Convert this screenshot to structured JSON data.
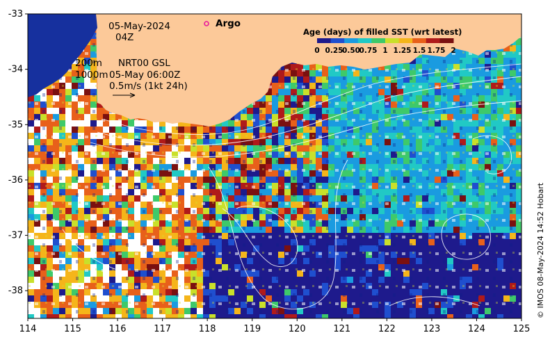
{
  "map": {
    "date": "05-May-2024",
    "hour": "04Z",
    "depth_label": "200m",
    "depth_label2": "1000m",
    "product": "NRT00 GSL",
    "product_time": "05-May 06:00Z",
    "velocity_scale": "0.5m/s (1kt 24h)",
    "argo_label": "Argo",
    "credit": "© IMOS 08-May-2024 14:52 Hobart",
    "lon_ticks": [
      "114",
      "115",
      "116",
      "117",
      "118",
      "119",
      "120",
      "121",
      "122",
      "123",
      "124",
      "125"
    ],
    "lat_ticks": [
      "-33",
      "-34",
      "-35",
      "-36",
      "-37",
      "-38"
    ],
    "lon_range": [
      114,
      125
    ],
    "lat_range": [
      -38.5,
      -33
    ],
    "land_color": "#fcc999",
    "argo_float": {
      "lon": 118.0,
      "lat": -33.2,
      "color": "#e8199c"
    }
  },
  "colorbar": {
    "title": "Age (days) of filled SST (wrt latest)",
    "ticks": [
      "0",
      "0.25",
      "0.50",
      "0.75",
      "1",
      "1.25",
      "1.5",
      "1.75",
      "2"
    ],
    "colors": [
      "#1e1a8c",
      "#1f4fcf",
      "#1a9be0",
      "#21c9c5",
      "#3ec96a",
      "#c9e02a",
      "#f5b51a",
      "#e8601a",
      "#b01a1a",
      "#7a1010"
    ],
    "range": [
      0,
      2
    ]
  }
}
